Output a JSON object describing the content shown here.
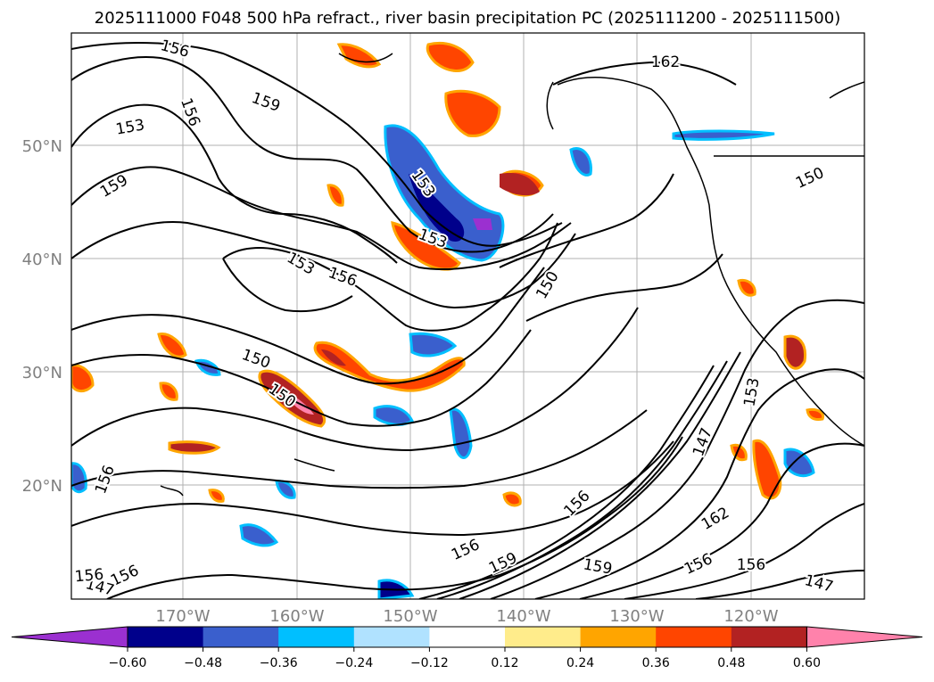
{
  "map": {
    "title": "2025111000 F048 500 hPa refract., river basin precipitation PC (2025111200 - 2025111500)",
    "lat_labels": [
      "50°N",
      "40°N",
      "30°N",
      "20°N"
    ],
    "lon_labels": [
      "170°W",
      "160°W",
      "150°W",
      "140°W",
      "130°W",
      "120°W"
    ],
    "contour_labels": [
      "156",
      "162",
      "159",
      "153",
      "156",
      "159",
      "153",
      "153",
      "150",
      "153",
      "156",
      "150",
      "150",
      "150",
      "153",
      "147",
      "162",
      "159",
      "156",
      "159",
      "156",
      "156",
      "147",
      "156",
      "156",
      "147",
      "156",
      "156"
    ],
    "colorbar": {
      "colors": [
        "#9b30d0",
        "#00008b",
        "#3a5fcd",
        "#00bfff",
        "#b0e2ff",
        "#ffffff",
        "#ffec8b",
        "#ffa500",
        "#ff4500",
        "#b22222",
        "#ff82ab"
      ],
      "tick_labels": [
        "−0.60",
        "−0.48",
        "−0.36",
        "−0.24",
        "−0.12",
        "0.12",
        "0.24",
        "0.36",
        "0.48",
        "0.60"
      ]
    }
  }
}
